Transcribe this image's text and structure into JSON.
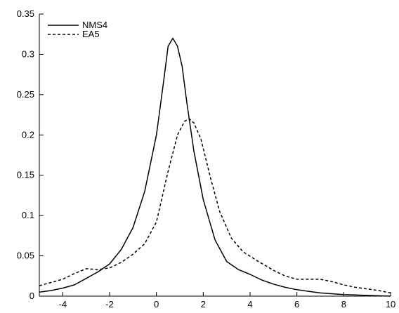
{
  "chart_data": {
    "type": "line",
    "title": "",
    "xlabel": "",
    "ylabel": "",
    "xlim": [
      -5,
      10
    ],
    "ylim": [
      0,
      0.35
    ],
    "grid": false,
    "legend": "top-left",
    "xticks": [
      -4,
      -2,
      0,
      2,
      4,
      6,
      8,
      10
    ],
    "xtick_labels": [
      "-4",
      "-2",
      "0",
      "2",
      "4",
      "6",
      "8",
      "10"
    ],
    "yticks": [
      0,
      0.05,
      0.1,
      0.15,
      0.2,
      0.25,
      0.3,
      0.35
    ],
    "ytick_labels": [
      "0",
      "0.05",
      "0.1",
      "0.15",
      "0.2",
      "0.25",
      "0.3",
      "0.35"
    ],
    "series": [
      {
        "name": "NMS4",
        "style": "solid",
        "color": "#000000",
        "x": [
          -5,
          -4.5,
          -4,
          -3.5,
          -3,
          -2.5,
          -2,
          -1.5,
          -1,
          -0.5,
          0,
          0.3,
          0.5,
          0.7,
          0.9,
          1.1,
          1.3,
          1.6,
          2,
          2.5,
          3,
          3.5,
          4,
          4.5,
          5,
          5.5,
          6,
          6.5,
          7,
          8,
          9,
          10
        ],
        "y": [
          0.005,
          0.007,
          0.01,
          0.014,
          0.022,
          0.03,
          0.04,
          0.058,
          0.085,
          0.13,
          0.2,
          0.265,
          0.31,
          0.32,
          0.31,
          0.285,
          0.24,
          0.18,
          0.12,
          0.07,
          0.043,
          0.033,
          0.027,
          0.02,
          0.015,
          0.011,
          0.008,
          0.006,
          0.004,
          0.002,
          0.001,
          0.0
        ]
      },
      {
        "name": "EA5",
        "style": "dashed",
        "color": "#000000",
        "x": [
          -5,
          -4.5,
          -4,
          -3.5,
          -3,
          -2.5,
          -2,
          -1.5,
          -1,
          -0.5,
          0,
          0.5,
          0.9,
          1.2,
          1.4,
          1.6,
          1.9,
          2.3,
          2.7,
          3.2,
          3.7,
          4.3,
          5,
          5.5,
          6,
          6.5,
          7,
          7.5,
          8,
          8.5,
          9,
          9.5,
          10
        ],
        "y": [
          0.013,
          0.017,
          0.021,
          0.028,
          0.034,
          0.033,
          0.035,
          0.042,
          0.052,
          0.065,
          0.092,
          0.155,
          0.2,
          0.217,
          0.22,
          0.215,
          0.195,
          0.148,
          0.105,
          0.072,
          0.055,
          0.044,
          0.032,
          0.025,
          0.021,
          0.021,
          0.021,
          0.018,
          0.014,
          0.011,
          0.009,
          0.007,
          0.004
        ]
      }
    ]
  }
}
